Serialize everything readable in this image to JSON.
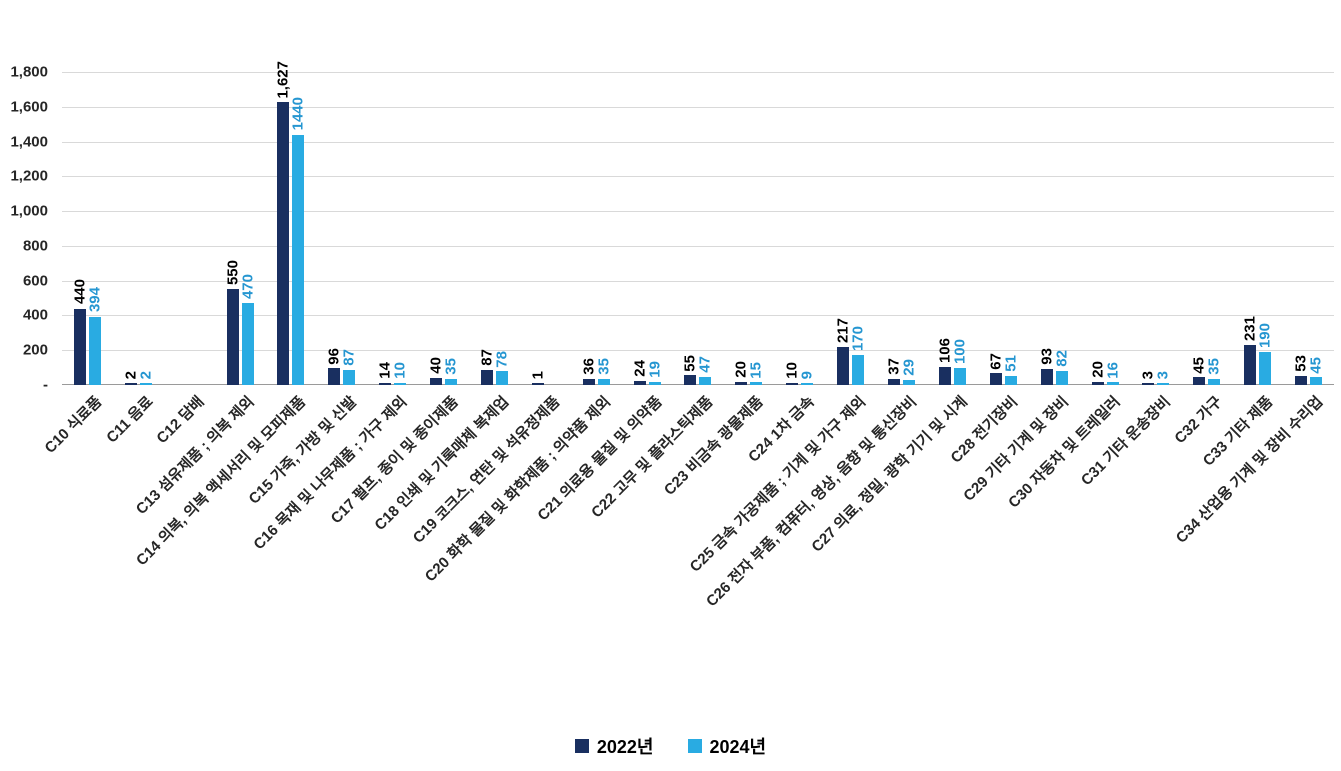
{
  "chart_data": {
    "type": "bar",
    "title": "",
    "xlabel": "",
    "ylabel": "",
    "ylim": [
      0,
      1800
    ],
    "ytick_step": 200,
    "ytick_labels": [
      "-",
      "200",
      "400",
      "600",
      "800",
      "1,000",
      "1,200",
      "1,400",
      "1,600",
      "1,800"
    ],
    "grid": true,
    "legend_position": "bottom",
    "categories": [
      "C10 식료품",
      "C11 음료",
      "C12 담배",
      "C13 섬유제품 ; 의복 제외",
      "C14 의복, 의복 액세서리 및 모피제품",
      "C15 가죽, 가방 및 신발",
      "C16 목재 및 나무제품 ; 가구 제외",
      "C17 펄프, 종이 및 종이제품",
      "C18 인쇄 및 기록매체 복제업",
      "C19 코크스, 연탄 및 석유정제품",
      "C20 화학 물질 및 화학제품 ; 의약품 제외",
      "C21 의료용 물질 및 의약품",
      "C22 고무 및 플라스틱제품",
      "C23 비금속 광물제품",
      "C24 1차 금속",
      "C25 금속 가공제품 ; 기계 및 가구 제외",
      "C26 전자 부품, 컴퓨터, 영상, 음향 및 통신장비",
      "C27 의료, 정밀, 광학 기기 및 시계",
      "C28 전기장비",
      "C29 기타 기계 및 장비",
      "C30 자동차 및 트레일러",
      "C31 기타 운송장비",
      "C32 가구",
      "C33 기타 제품",
      "C34 산업용 기계 및 장비 수리업"
    ],
    "series": [
      {
        "name": "2022년",
        "color": "#192f60",
        "label_color": "#000000",
        "values": [
          440,
          2,
          0,
          550,
          1627,
          96,
          14,
          40,
          87,
          1,
          36,
          24,
          55,
          20,
          10,
          217,
          37,
          106,
          67,
          93,
          20,
          3,
          45,
          231,
          53
        ],
        "labels": [
          "440",
          "2",
          "",
          "550",
          "1,627",
          "96",
          "14",
          "40",
          "87",
          "1",
          "36",
          "24",
          "55",
          "20",
          "10",
          "217",
          "37",
          "106",
          "67",
          "93",
          "20",
          "3",
          "45",
          "231",
          "53"
        ]
      },
      {
        "name": "2024년",
        "color": "#29abe2",
        "label_color": "#2596d1",
        "values": [
          394,
          2,
          0,
          470,
          1440,
          87,
          10,
          35,
          78,
          0,
          35,
          19,
          47,
          15,
          9,
          170,
          29,
          100,
          51,
          82,
          16,
          3,
          35,
          190,
          45
        ],
        "labels": [
          "394",
          "2",
          "",
          "470",
          "1440",
          "87",
          "10",
          "35",
          "78",
          "",
          "35",
          "19",
          "47",
          "15",
          "9",
          "170",
          "29",
          "100",
          "51",
          "82",
          "16",
          "3",
          "35",
          "190",
          "45"
        ]
      }
    ]
  }
}
